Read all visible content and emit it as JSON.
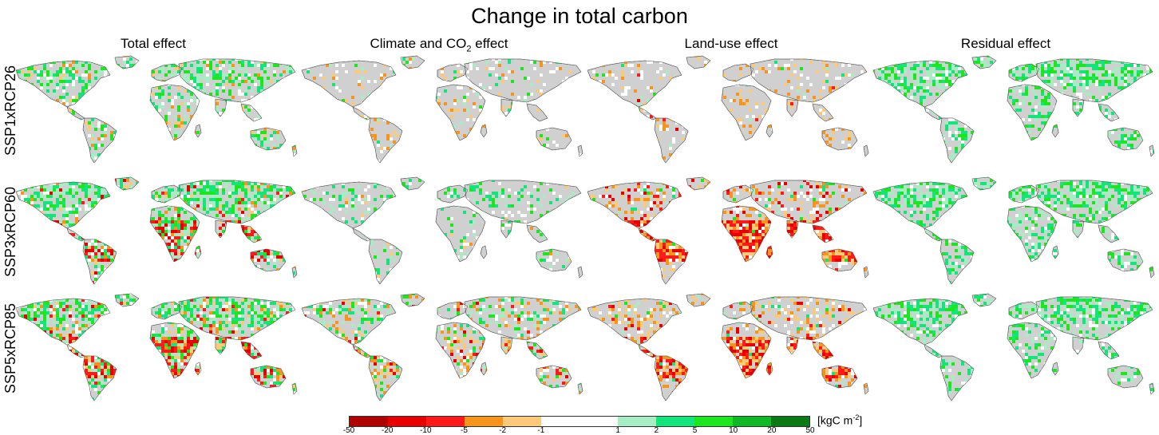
{
  "title": "Change in total carbon",
  "columns": [
    {
      "label": "Total effect"
    },
    {
      "label_main": "Climate and CO",
      "label_sub": "2",
      "label_end": " effect"
    },
    {
      "label": "Land-use effect"
    },
    {
      "label": "Residual effect"
    }
  ],
  "rows": [
    "SSP1xRCP26",
    "SSP3xRCP60",
    "SSP5xRCP85"
  ],
  "legend": {
    "unit_main": "[kgC m",
    "unit_sup": "-2",
    "unit_end": "]",
    "ticks": [
      "-50",
      "-20",
      "-10",
      "-5",
      "-2",
      "-1",
      "1",
      "2",
      "5",
      "10",
      "20",
      "50"
    ],
    "colors": [
      "#b00000",
      "#e60000",
      "#ff1a1a",
      "#f7941d",
      "#fbc97a",
      "#ffffff",
      "#ffffff",
      "#a8ecc4",
      "#14e57a",
      "#1ee61e",
      "#10b826",
      "#0a7a14"
    ]
  },
  "land_color": "#d0d0d0",
  "panels": [
    [
      {
        "green": 0.35,
        "orange": 0.08,
        "red": 0.0
      },
      {
        "green": 0.05,
        "orange": 0.1,
        "red": 0.0
      },
      {
        "green": 0.02,
        "orange": 0.14,
        "red": 0.01
      },
      {
        "green": 0.45,
        "orange": 0.0,
        "red": 0.0
      }
    ],
    [
      {
        "green": 0.45,
        "orange": 0.1,
        "red": 0.15
      },
      {
        "green": 0.18,
        "orange": 0.02,
        "red": 0.0
      },
      {
        "green": 0.05,
        "orange": 0.25,
        "red": 0.3
      },
      {
        "green": 0.5,
        "orange": 0.0,
        "red": 0.0
      }
    ],
    [
      {
        "green": 0.4,
        "orange": 0.15,
        "red": 0.2
      },
      {
        "green": 0.2,
        "orange": 0.2,
        "red": 0.05
      },
      {
        "green": 0.05,
        "orange": 0.3,
        "red": 0.2
      },
      {
        "green": 0.45,
        "orange": 0.0,
        "red": 0.0
      }
    ]
  ]
}
